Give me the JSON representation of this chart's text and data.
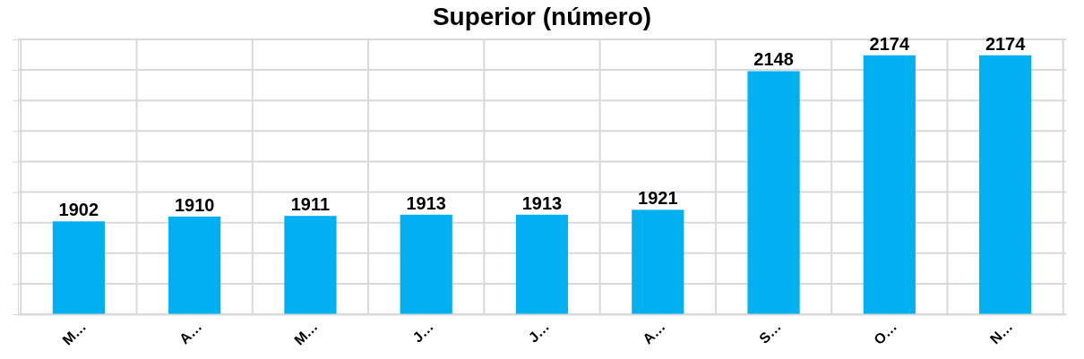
{
  "chart_data": {
    "type": "bar",
    "title": "Superior (número)",
    "categories": [
      "M…",
      "A…",
      "M…",
      "J…",
      "J…",
      "A…",
      "S…",
      "O…",
      "N…"
    ],
    "values": [
      1902,
      1910,
      1911,
      1913,
      1913,
      1921,
      2148,
      2174,
      2174
    ],
    "color": "#00b0f0",
    "ylim": [
      1750,
      2200
    ],
    "yticks": [
      {
        "value": 1750,
        "label": null
      },
      {
        "value": 1800,
        "label": null
      },
      {
        "value": 1850,
        "label": null
      },
      {
        "value": 1900,
        "label": null
      },
      {
        "value": 1950,
        "label": null
      },
      {
        "value": 2000,
        "label": null
      },
      {
        "value": 2050,
        "label": null
      },
      {
        "value": 2100,
        "label": null
      },
      {
        "value": 2150,
        "label": null
      },
      {
        "value": 2200,
        "label": null
      }
    ],
    "grid": true,
    "tick_labels": "x",
    "data_labels": true
  }
}
